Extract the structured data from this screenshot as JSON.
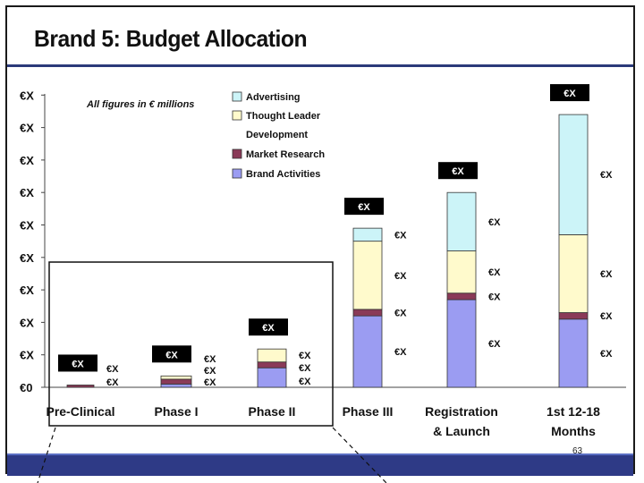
{
  "slide": {
    "title": "Brand 5: Budget Allocation",
    "page_number": "63",
    "note": "All figures in € millions"
  },
  "colors": {
    "advertising": "#ccf4f8",
    "thought_leader": "#fffacc",
    "market_research": "#8a3a58",
    "brand_activities": "#9b9cf2",
    "band": "#2e3a86",
    "label_box": "#000000"
  },
  "chart_data": {
    "type": "bar",
    "stacked": true,
    "title": "Brand 5: Budget Allocation",
    "xlabel": "",
    "ylabel": "",
    "ylim": [
      0,
      9
    ],
    "y_tick_labels": [
      "€0",
      "€X",
      "€X",
      "€X",
      "€X",
      "€X",
      "€X",
      "€X",
      "€X",
      "€X"
    ],
    "categories": [
      "Pre-Clinical",
      "Phase I",
      "Phase II",
      "Phase III",
      "Registration & Launch",
      "1st 12-18 Months"
    ],
    "series": [
      {
        "name": "Brand Activities",
        "color": "#9b9cf2",
        "values": [
          0.0,
          0.1,
          0.6,
          2.2,
          2.7,
          2.1
        ]
      },
      {
        "name": "Market Research",
        "color": "#8a3a58",
        "values": [
          0.07,
          0.15,
          0.18,
          0.2,
          0.2,
          0.2
        ]
      },
      {
        "name": "Thought Leader Development",
        "color": "#fffacc",
        "values": [
          0.0,
          0.1,
          0.4,
          2.1,
          1.3,
          2.4
        ]
      },
      {
        "name": "Advertising",
        "color": "#ccf4f8",
        "values": [
          0.0,
          0.0,
          0.0,
          0.4,
          1.8,
          3.7
        ]
      }
    ],
    "total_labels": [
      "€X",
      "€X",
      "€X",
      "€X",
      "€X",
      "€X"
    ],
    "segment_labels": [
      [
        "€X",
        "€X"
      ],
      [
        "€X",
        "€X",
        "€X"
      ],
      [
        "€X",
        "€X",
        "€X"
      ],
      [
        "€X",
        "€X",
        "€X",
        "€X"
      ],
      [
        "€X",
        "€X",
        "€X",
        "€X"
      ],
      [
        "€X",
        "€X",
        "€X",
        "€X"
      ]
    ],
    "legend": {
      "placement": "top-left",
      "entries": [
        "Advertising",
        "Thought Leader Development",
        "Market Research",
        "Brand Activities"
      ]
    },
    "grid": false
  }
}
